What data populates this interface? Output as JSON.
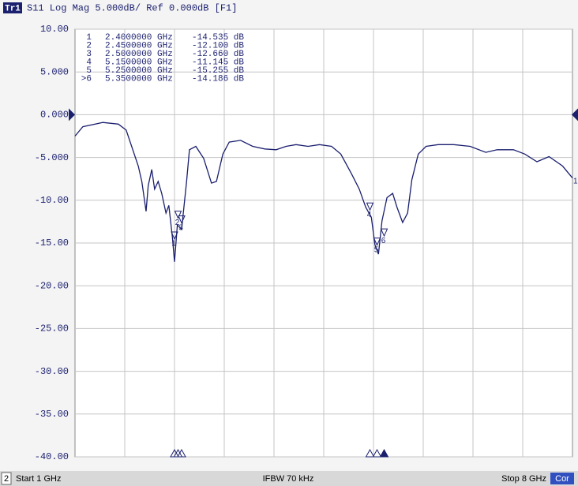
{
  "chart_data": {
    "type": "line",
    "trace_tag": "Tr1",
    "title": "S11 Log Mag 5.000dB/ Ref 0.000dB [F1]",
    "trace_label": "1",
    "ref": 0,
    "xlim": [
      1,
      8
    ],
    "ylim": [
      -40,
      10
    ],
    "yticks": [
      {
        "value": 10,
        "label": "10.00"
      },
      {
        "value": 5,
        "label": "5.000"
      },
      {
        "value": 0,
        "label": "0.000"
      },
      {
        "value": -5,
        "label": "-5.000"
      },
      {
        "value": -10,
        "label": "-10.00"
      },
      {
        "value": -15,
        "label": "-15.00"
      },
      {
        "value": -20,
        "label": "-20.00"
      },
      {
        "value": -25,
        "label": "-25.00"
      },
      {
        "value": -30,
        "label": "-30.00"
      },
      {
        "value": -35,
        "label": "-35.00"
      },
      {
        "value": -40,
        "label": "-40.00"
      }
    ],
    "grid": true,
    "series": [
      {
        "name": "S11",
        "color": "#1a1f6e",
        "x": [
          1.0,
          1.11,
          1.39,
          1.61,
          1.72,
          1.89,
          1.94,
          2.0,
          2.03,
          2.08,
          2.12,
          2.17,
          2.22,
          2.28,
          2.32,
          2.37,
          2.4,
          2.44,
          2.5,
          2.57,
          2.61,
          2.7,
          2.81,
          2.92,
          2.99,
          3.08,
          3.17,
          3.33,
          3.5,
          3.67,
          3.83,
          3.97,
          4.11,
          4.28,
          4.44,
          4.61,
          4.74,
          4.89,
          5.0,
          5.09,
          5.17,
          5.22,
          5.27,
          5.32,
          5.39,
          5.47,
          5.53,
          5.61,
          5.68,
          5.74,
          5.83,
          5.94,
          6.11,
          6.33,
          6.56,
          6.78,
          6.94,
          7.17,
          7.33,
          7.5,
          7.67,
          7.86,
          8.0
        ],
        "values": [
          -2.5,
          -1.4,
          -0.9,
          -1.1,
          -1.8,
          -6.0,
          -7.8,
          -11.3,
          -8.3,
          -6.4,
          -8.7,
          -7.8,
          -9.2,
          -11.5,
          -10.6,
          -14.3,
          -17.2,
          -12.9,
          -13.4,
          -7.8,
          -4.1,
          -3.7,
          -5.1,
          -8.0,
          -7.8,
          -4.6,
          -3.2,
          -3.0,
          -3.7,
          -4.0,
          -4.1,
          -3.7,
          -3.5,
          -3.7,
          -3.5,
          -3.7,
          -4.6,
          -6.9,
          -8.7,
          -10.8,
          -12.0,
          -15.2,
          -16.3,
          -12.4,
          -9.7,
          -9.2,
          -10.8,
          -12.6,
          -11.5,
          -7.6,
          -4.6,
          -3.7,
          -3.5,
          -3.5,
          -3.7,
          -4.4,
          -4.1,
          -4.1,
          -4.6,
          -5.5,
          -4.9,
          -6.0,
          -7.4
        ]
      }
    ],
    "markers": [
      {
        "label": "1",
        "x": 2.4,
        "x_label": "2.4000000 GHz",
        "value": -14.535,
        "value_label": "-14.535 dB"
      },
      {
        "label": "2",
        "x": 2.45,
        "x_label": "2.4500000 GHz",
        "value": -12.1,
        "value_label": "-12.100 dB"
      },
      {
        "label": "3",
        "x": 2.5,
        "x_label": "2.5000000 GHz",
        "value": -12.66,
        "value_label": "-12.660 dB"
      },
      {
        "label": "4",
        "x": 5.15,
        "x_label": "5.1500000 GHz",
        "value": -11.145,
        "value_label": "-11.145 dB"
      },
      {
        "label": "5",
        "x": 5.25,
        "x_label": "5.2500000 GHz",
        "value": -15.255,
        "value_label": "-15.255 dB"
      },
      {
        "label": "6",
        "table_label": ">6",
        "x": 5.35,
        "x_label": "5.3500000 GHz",
        "value": -14.186,
        "value_label": "-14.186 dB"
      }
    ],
    "footer": {
      "channel": "2",
      "start": "Start 1 GHz",
      "ifbw": "IFBW 70 kHz",
      "stop": "Stop 8 GHz",
      "cor": "Cor"
    }
  }
}
